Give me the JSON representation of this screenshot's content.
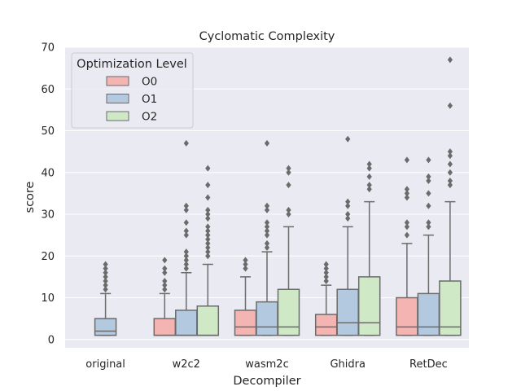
{
  "chart_data": {
    "type": "box",
    "title": "Cyclomatic Complexity",
    "xlabel": "Decompiler",
    "ylabel": "score",
    "ylim": [
      -2,
      70
    ],
    "yticks": [
      0,
      10,
      20,
      30,
      40,
      50,
      60,
      70
    ],
    "grid": true,
    "legend": {
      "title": "Optimization Level",
      "placement": "top-left"
    },
    "categories": [
      "original",
      "w2c2",
      "wasm2c",
      "Ghidra",
      "RetDec"
    ],
    "series": [
      {
        "name": "O0",
        "color": "#f4b5b2",
        "boxes": [
          null,
          {
            "category": "w2c2",
            "q1": 1,
            "median": 1,
            "q3": 5,
            "whisker_low": 1,
            "whisker_high": 11,
            "outliers": [
              12,
              13,
              14,
              16,
              17,
              19
            ]
          },
          {
            "category": "wasm2c",
            "q1": 1,
            "median": 3,
            "q3": 7,
            "whisker_low": 1,
            "whisker_high": 15,
            "outliers": [
              17,
              18,
              19
            ]
          },
          {
            "category": "Ghidra",
            "q1": 1,
            "median": 3,
            "q3": 6,
            "whisker_low": 1,
            "whisker_high": 13,
            "outliers": [
              14,
              15,
              16,
              17,
              18
            ]
          },
          {
            "category": "RetDec",
            "q1": 1,
            "median": 3,
            "q3": 10,
            "whisker_low": 1,
            "whisker_high": 23,
            "outliers": [
              25,
              27,
              28,
              34,
              35,
              36,
              43
            ]
          }
        ]
      },
      {
        "name": "O1",
        "color": "#b3c9e0",
        "boxes": [
          {
            "category": "original",
            "q1": 1,
            "median": 2,
            "q3": 5,
            "whisker_low": 1,
            "whisker_high": 11,
            "outliers": [
              12,
              13,
              14,
              15,
              16,
              17,
              18
            ]
          },
          {
            "category": "w2c2",
            "q1": 1,
            "median": 1,
            "q3": 7,
            "whisker_low": 1,
            "whisker_high": 16,
            "outliers": [
              17,
              18,
              19,
              20,
              21,
              25,
              26,
              28,
              31,
              32,
              47
            ]
          },
          {
            "category": "wasm2c",
            "q1": 1,
            "median": 3,
            "q3": 9,
            "whisker_low": 1,
            "whisker_high": 21,
            "outliers": [
              22,
              23,
              25,
              26,
              27,
              28,
              31,
              32,
              47
            ]
          },
          {
            "category": "Ghidra",
            "q1": 1,
            "median": 4,
            "q3": 12,
            "whisker_low": 1,
            "whisker_high": 27,
            "outliers": [
              29,
              30,
              32,
              33,
              48
            ]
          },
          {
            "category": "RetDec",
            "q1": 1,
            "median": 3,
            "q3": 11,
            "whisker_low": 1,
            "whisker_high": 25,
            "outliers": [
              27,
              28,
              32,
              35,
              38,
              39,
              43
            ]
          }
        ]
      },
      {
        "name": "O2",
        "color": "#cfe8c6",
        "boxes": [
          null,
          {
            "category": "w2c2",
            "q1": 1,
            "median": 1,
            "q3": 8,
            "whisker_low": 1,
            "whisker_high": 18,
            "outliers": [
              20,
              21,
              22,
              23,
              24,
              25,
              26,
              27,
              29,
              30,
              31,
              34,
              37,
              41
            ]
          },
          {
            "category": "wasm2c",
            "q1": 1,
            "median": 3,
            "q3": 12,
            "whisker_low": 1,
            "whisker_high": 27,
            "outliers": [
              30,
              31,
              37,
              40,
              41
            ]
          },
          {
            "category": "Ghidra",
            "q1": 1,
            "median": 4,
            "q3": 15,
            "whisker_low": 1,
            "whisker_high": 33,
            "outliers": [
              36,
              37,
              39,
              41,
              42
            ]
          },
          {
            "category": "RetDec",
            "q1": 1,
            "median": 3,
            "q3": 14,
            "whisker_low": 1,
            "whisker_high": 33,
            "outliers": [
              37,
              38,
              40,
              42,
              44,
              45,
              56,
              67
            ]
          }
        ]
      }
    ]
  }
}
